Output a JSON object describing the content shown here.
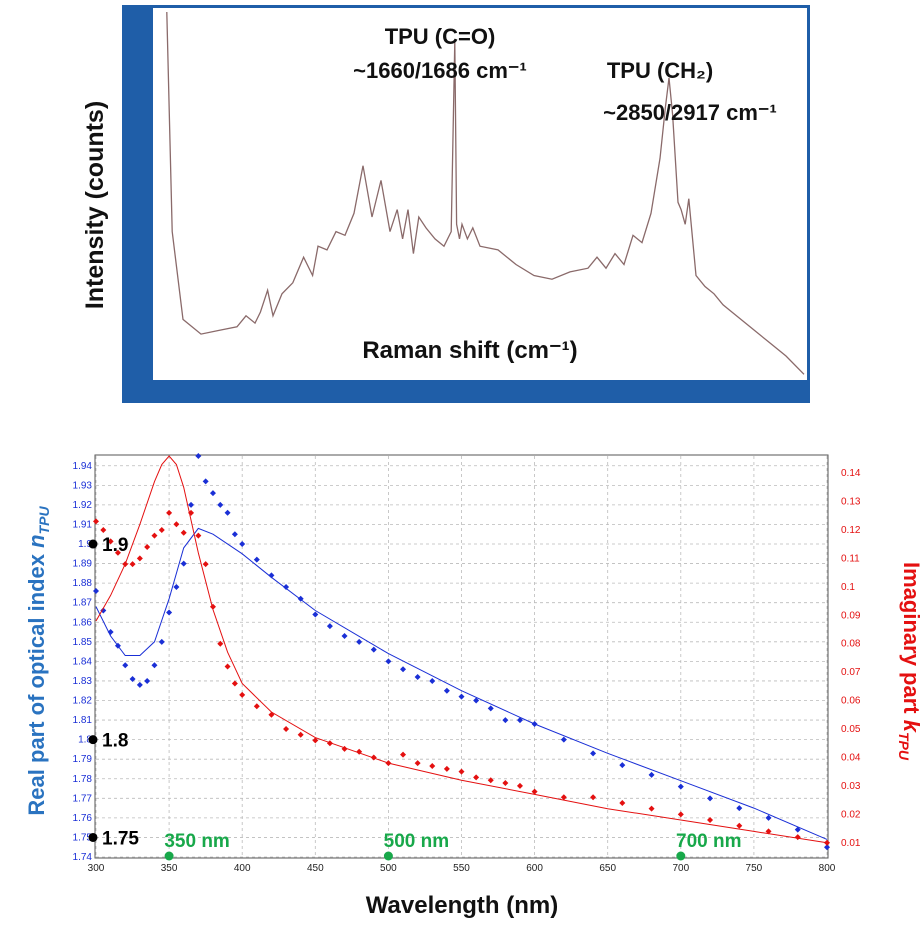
{
  "colors": {
    "frame_blue": "#1f5ea8",
    "raman_line": "#8a6a6a",
    "real_series": "#1a2fd6",
    "imag_series": "#e41010",
    "marker_green": "#18a84a",
    "ylabel_left": "#2a73c0",
    "ylabel_right": "#e41010"
  },
  "raman_panel": {
    "ylabel": "Intensity (counts)",
    "xlabel": "Raman shift (cm⁻¹)",
    "annotations": [
      {
        "line1": "TPU (C=O)",
        "line2": "~1660/1686 cm⁻¹"
      },
      {
        "line1": "TPU (CH₂)",
        "line2": "~2850/2917 cm⁻¹"
      }
    ]
  },
  "chart_data": [
    {
      "type": "line",
      "title": "",
      "xlabel": "Raman shift (cm⁻¹)",
      "ylabel": "Intensity (counts)",
      "xlim": [
        0,
        3600
      ],
      "ylim": [
        0,
        100
      ],
      "grid": false,
      "series": [
        {
          "x": [
            60,
            90,
            150,
            250,
            350,
            450,
            500,
            550,
            580,
            620,
            650,
            700,
            760,
            820,
            870,
            900,
            950,
            1000,
            1050,
            1100,
            1150,
            1200,
            1250,
            1300,
            1340,
            1370,
            1400,
            1430,
            1460,
            1500,
            1550,
            1600,
            1640,
            1660,
            1670,
            1686,
            1700,
            1730,
            1760,
            1800,
            1900,
            2000,
            2100,
            2200,
            2300,
            2400,
            2450,
            2500,
            2550,
            2600,
            2650,
            2700,
            2750,
            2800,
            2830,
            2850,
            2870,
            2900,
            2917,
            2940,
            2960,
            3000,
            3050,
            3100,
            3150,
            3200,
            3300,
            3400,
            3500,
            3600
          ],
          "y": [
            100,
            40,
            16,
            12,
            13,
            14,
            17,
            15,
            18,
            24,
            17,
            23,
            26,
            33,
            28,
            36,
            35,
            40,
            39,
            45,
            58,
            44,
            54,
            40,
            46,
            38,
            46,
            34,
            44,
            41,
            38,
            36,
            40,
            92,
            42,
            38,
            42,
            38,
            41,
            36,
            35,
            31,
            28,
            27,
            29,
            30,
            33,
            30,
            34,
            31,
            39,
            37,
            45,
            60,
            74,
            82,
            72,
            48,
            46,
            42,
            49,
            28,
            25,
            23,
            20,
            18,
            14,
            10,
            6,
            1
          ]
        }
      ]
    },
    {
      "type": "scatter",
      "title": "",
      "xlabel": "Wavelength (nm)",
      "ylabel": "Real part of optical index n_TPU",
      "y2label": "Imaginary part k_TPU",
      "xlim": [
        300,
        800
      ],
      "ylim": [
        1.74,
        1.945
      ],
      "y2lim": [
        0.005,
        0.146
      ],
      "grid": true,
      "x_ticks": [
        300,
        350,
        400,
        450,
        500,
        550,
        600,
        650,
        700,
        750,
        800
      ],
      "y_ticks": [
        1.74,
        1.75,
        1.76,
        1.77,
        1.78,
        1.79,
        1.8,
        1.81,
        1.82,
        1.83,
        1.84,
        1.85,
        1.86,
        1.87,
        1.88,
        1.89,
        1.9,
        1.91,
        1.92,
        1.93,
        1.94
      ],
      "y2_ticks": [
        0.01,
        0.02,
        0.03,
        0.04,
        0.05,
        0.06,
        0.07,
        0.08,
        0.09,
        0.1,
        0.11,
        0.12,
        0.13,
        0.14
      ],
      "series": [
        {
          "axis": "left",
          "x": [
            300,
            305,
            310,
            315,
            320,
            325,
            330,
            335,
            340,
            345,
            350,
            355,
            360,
            365,
            370,
            375,
            380,
            385,
            390,
            395,
            400,
            410,
            420,
            430,
            440,
            450,
            460,
            470,
            480,
            490,
            500,
            510,
            520,
            530,
            540,
            550,
            560,
            570,
            580,
            590,
            600,
            620,
            640,
            660,
            680,
            700,
            720,
            740,
            760,
            780,
            800
          ],
          "y": [
            1.876,
            1.866,
            1.855,
            1.848,
            1.838,
            1.831,
            1.828,
            1.83,
            1.838,
            1.85,
            1.865,
            1.878,
            1.89,
            1.92,
            1.945,
            1.932,
            1.926,
            1.92,
            1.916,
            1.905,
            1.9,
            1.892,
            1.884,
            1.878,
            1.872,
            1.864,
            1.858,
            1.853,
            1.85,
            1.846,
            1.84,
            1.836,
            1.832,
            1.83,
            1.825,
            1.822,
            1.82,
            1.816,
            1.81,
            1.81,
            1.808,
            1.8,
            1.793,
            1.787,
            1.782,
            1.776,
            1.77,
            1.765,
            1.76,
            1.754,
            1.745
          ]
        },
        {
          "axis": "right",
          "x": [
            300,
            305,
            310,
            315,
            320,
            325,
            330,
            335,
            340,
            345,
            350,
            355,
            360,
            365,
            370,
            375,
            380,
            385,
            390,
            395,
            400,
            410,
            420,
            430,
            440,
            450,
            460,
            470,
            480,
            490,
            500,
            510,
            520,
            530,
            540,
            550,
            560,
            570,
            580,
            590,
            600,
            620,
            640,
            660,
            680,
            700,
            720,
            740,
            760,
            780,
            800
          ],
          "y": [
            0.123,
            0.12,
            0.116,
            0.112,
            0.108,
            0.108,
            0.11,
            0.114,
            0.118,
            0.12,
            0.126,
            0.122,
            0.119,
            0.126,
            0.118,
            0.108,
            0.093,
            0.08,
            0.072,
            0.066,
            0.062,
            0.058,
            0.055,
            0.05,
            0.048,
            0.046,
            0.045,
            0.043,
            0.042,
            0.04,
            0.038,
            0.041,
            0.038,
            0.037,
            0.036,
            0.035,
            0.033,
            0.032,
            0.031,
            0.03,
            0.028,
            0.026,
            0.026,
            0.024,
            0.022,
            0.02,
            0.018,
            0.016,
            0.014,
            0.012,
            0.01
          ]
        },
        {
          "axis": "left",
          "type": "line",
          "x": [
            300,
            310,
            320,
            330,
            340,
            350,
            360,
            370,
            380,
            400,
            420,
            450,
            500,
            550,
            600,
            650,
            700,
            750,
            800
          ],
          "y": [
            1.868,
            1.853,
            1.843,
            1.843,
            1.85,
            1.872,
            1.898,
            1.908,
            1.905,
            1.895,
            1.883,
            1.866,
            1.844,
            1.825,
            1.808,
            1.793,
            1.779,
            1.765,
            1.749
          ]
        },
        {
          "axis": "right",
          "type": "line",
          "x": [
            300,
            310,
            320,
            330,
            340,
            345,
            350,
            355,
            360,
            370,
            380,
            390,
            400,
            420,
            450,
            500,
            550,
            600,
            650,
            700,
            750,
            800
          ],
          "y": [
            0.088,
            0.097,
            0.108,
            0.122,
            0.137,
            0.143,
            0.146,
            0.143,
            0.135,
            0.112,
            0.092,
            0.077,
            0.066,
            0.056,
            0.047,
            0.038,
            0.032,
            0.027,
            0.022,
            0.018,
            0.014,
            0.01
          ]
        }
      ]
    }
  ],
  "markers": {
    "y_points": [
      {
        "value": 1.9,
        "label": "1.9"
      },
      {
        "value": 1.8,
        "label": "1.8"
      },
      {
        "value": 1.75,
        "label": "1.75"
      }
    ],
    "x_points": [
      {
        "value": 350,
        "label": "350 nm"
      },
      {
        "value": 500,
        "label": "500 nm"
      },
      {
        "value": 700,
        "label": "700 nm"
      }
    ]
  }
}
